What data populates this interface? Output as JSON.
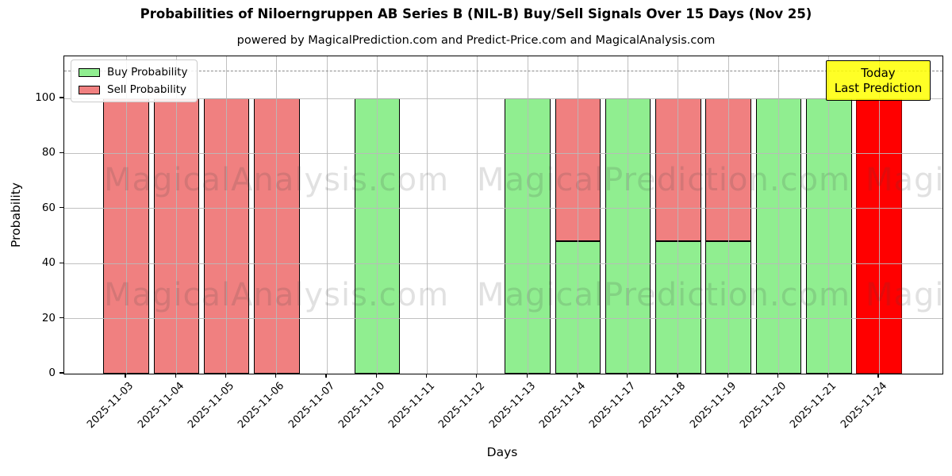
{
  "title": "Probabilities of Niloerngruppen AB Series B (NIL-B) Buy/Sell Signals Over 15 Days (Nov 25)",
  "subtitle": "powered by MagicalPrediction.com and Predict-Price.com and MagicalAnalysis.com",
  "axes": {
    "xlabel": "Days",
    "ylabel": "Probability",
    "yticks": [
      0,
      20,
      40,
      60,
      80,
      100
    ]
  },
  "legend": {
    "items": [
      {
        "label": "Buy Probability",
        "color": "#90ee90"
      },
      {
        "label": "Sell Probability",
        "color": "#f08080"
      }
    ]
  },
  "annotation_box": {
    "line1": "Today",
    "line2": "Last Prediction",
    "bg_color": "#ffff00"
  },
  "watermarks": {
    "texts": [
      "MagicalAnalysis.com",
      "MagicalPrediction.com"
    ]
  },
  "chart_data": {
    "type": "bar",
    "stacked": true,
    "title": "Probabilities of Niloerngruppen AB Series B (NIL-B) Buy/Sell Signals Over 15 Days (Nov 25)",
    "xlabel": "Days",
    "ylabel": "Probability",
    "categories": [
      "2025-11-03",
      "2025-11-04",
      "2025-11-05",
      "2025-11-06",
      "2025-11-07",
      "2025-11-10",
      "2025-11-11",
      "2025-11-12",
      "2025-11-13",
      "2025-11-14",
      "2025-11-17",
      "2025-11-18",
      "2025-11-19",
      "2025-11-20",
      "2025-11-21",
      "2025-11-24"
    ],
    "series": [
      {
        "name": "Buy Probability",
        "color": "#90ee90",
        "edge": "#000000",
        "values": [
          0,
          0,
          0,
          0,
          0,
          100,
          0,
          0,
          100,
          48,
          100,
          48,
          48,
          100,
          100,
          0
        ]
      },
      {
        "name": "Sell Probability",
        "color": "#f08080",
        "edge": "#000000",
        "values": [
          100,
          100,
          100,
          100,
          0,
          0,
          0,
          0,
          0,
          52,
          0,
          52,
          52,
          0,
          0,
          0
        ]
      },
      {
        "name": "Today Last Prediction",
        "color": "#ff0000",
        "edge": "#8b0000",
        "values": [
          0,
          0,
          0,
          0,
          0,
          0,
          0,
          0,
          0,
          0,
          0,
          0,
          0,
          0,
          0,
          100
        ]
      }
    ],
    "ylim": [
      0,
      115.3
    ],
    "yticks": [
      0,
      20,
      40,
      60,
      80,
      100
    ],
    "dashed_line_y": 110,
    "grid": true,
    "legend_position": "upper left"
  }
}
